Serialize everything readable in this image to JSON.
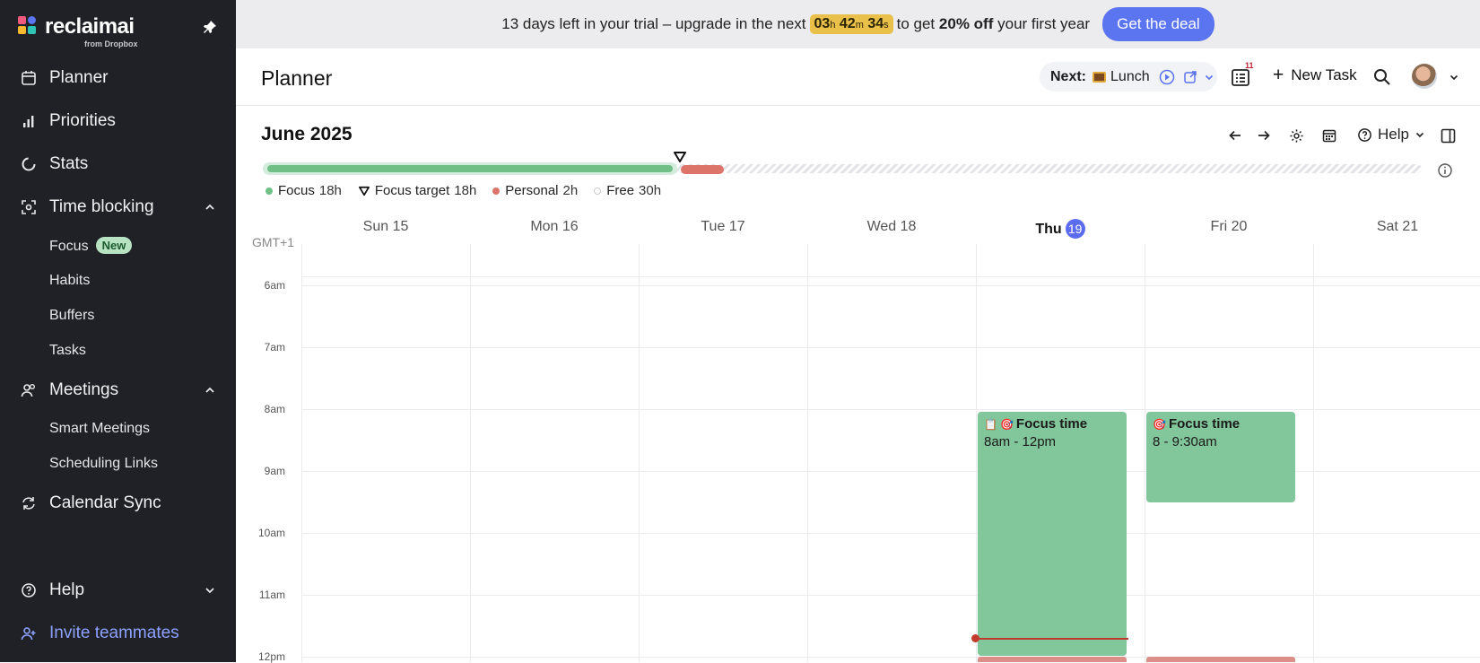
{
  "sidebar": {
    "logo_text": "reclaimai",
    "logo_sub": "from Dropbox",
    "items": [
      {
        "label": "Planner",
        "icon": "calendar-icon"
      },
      {
        "label": "Priorities",
        "icon": "bar-chart-icon"
      },
      {
        "label": "Stats",
        "icon": "circle-progress-icon"
      },
      {
        "label": "Time blocking",
        "icon": "focus-frame-icon"
      },
      {
        "label": "Meetings",
        "icon": "people-icon"
      },
      {
        "label": "Calendar Sync",
        "icon": "sync-icon"
      },
      {
        "label": "Help",
        "icon": "question-circle-icon"
      },
      {
        "label": "Invite teammates",
        "icon": "add-user-icon"
      }
    ],
    "time_blocking_sub": [
      "Focus",
      "Habits",
      "Buffers",
      "Tasks"
    ],
    "focus_badge": "New",
    "meetings_sub": [
      "Smart Meetings",
      "Scheduling Links"
    ]
  },
  "banner": {
    "text_before": "13 days left in your trial – upgrade in the next",
    "timer_h": "03",
    "timer_h_unit": "h",
    "timer_m": "42",
    "timer_m_unit": "m",
    "timer_s": "34",
    "timer_s_unit": "s",
    "text_mid": "to get",
    "discount": "20% off",
    "text_after": "your first year",
    "cta": "Get the deal"
  },
  "header": {
    "title": "Planner",
    "next_label": "Next:",
    "next_event": "Lunch",
    "notif_count": "11",
    "new_task": "New Task"
  },
  "toolbar": {
    "month": "June 2025",
    "help": "Help"
  },
  "progress": {
    "focus_fraction": 0.35,
    "personal_fraction": 0.037
  },
  "legend": [
    {
      "label": "Focus",
      "value": "18h",
      "color": "#6fbf86"
    },
    {
      "label": "Focus target",
      "value": "18h",
      "color": "#111111"
    },
    {
      "label": "Personal",
      "value": "2h",
      "color": "#dc7469"
    },
    {
      "label": "Free",
      "value": "30h",
      "color": "#dddddd"
    }
  ],
  "calendar": {
    "timezone": "GMT+1",
    "days": [
      {
        "name": "Sun",
        "num": "15"
      },
      {
        "name": "Mon",
        "num": "16"
      },
      {
        "name": "Tue",
        "num": "17"
      },
      {
        "name": "Wed",
        "num": "18"
      },
      {
        "name": "Thu",
        "num": "19"
      },
      {
        "name": "Fri",
        "num": "20"
      },
      {
        "name": "Sat",
        "num": "21"
      }
    ],
    "hours": [
      "6am",
      "7am",
      "8am",
      "9am",
      "10am",
      "11am",
      "12pm"
    ],
    "events": [
      {
        "title": "Focus time",
        "time": "8am - 12pm"
      },
      {
        "title": "Focus time",
        "time": "8 - 9:30am"
      }
    ]
  },
  "colors": {
    "accent": "#5b74f0",
    "focus": "#82c69b",
    "personal": "#dc7469",
    "sidebar_bg": "#1f2127"
  }
}
